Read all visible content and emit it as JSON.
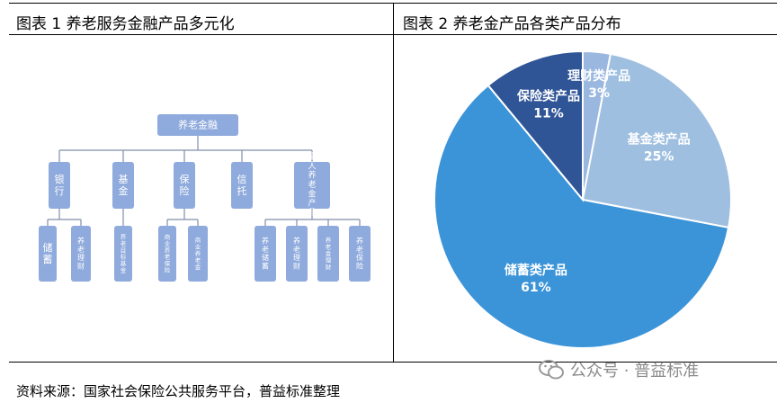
{
  "left_figure": {
    "caption": "图表 1 养老服务金融产品多元化",
    "root": "养老金融",
    "branches": [
      {
        "label": "银行",
        "children": [
          "储蓄",
          "养老理财"
        ]
      },
      {
        "label": "基金",
        "children": [
          "养老目标基金"
        ]
      },
      {
        "label": "保险",
        "children": [
          "商业养老保险",
          "商业养老金"
        ]
      },
      {
        "label": "信托",
        "children": []
      },
      {
        "label": "个人养老金产品",
        "children": [
          "养老储蓄",
          "养老理财",
          "养老金理财",
          "养老保险"
        ]
      }
    ]
  },
  "right_figure": {
    "caption": "图表 2 养老金产品各类产品分布"
  },
  "chart_data": {
    "type": "pie",
    "title": "图表 2 养老金产品各类产品分布",
    "slices": [
      {
        "label": "理财类产品",
        "value": 3,
        "display": "3%",
        "color": "#9ab7df"
      },
      {
        "label": "基金类产品",
        "value": 25,
        "display": "25%",
        "color": "#9ebfe0"
      },
      {
        "label": "储蓄类产品",
        "value": 61,
        "display": "61%",
        "color": "#3c94d8"
      },
      {
        "label": "保险类产品",
        "value": 11,
        "display": "11%",
        "color": "#2f5597"
      }
    ],
    "label_color": "#ffffff"
  },
  "colors": {
    "box_fill": "#8faadc",
    "box_text": "#ffffff",
    "connector": "#7f8fa9"
  },
  "source": "资料来源：国家社会保险公共服务平台，普益标准整理",
  "watermark": "公众号 · 普益标准"
}
